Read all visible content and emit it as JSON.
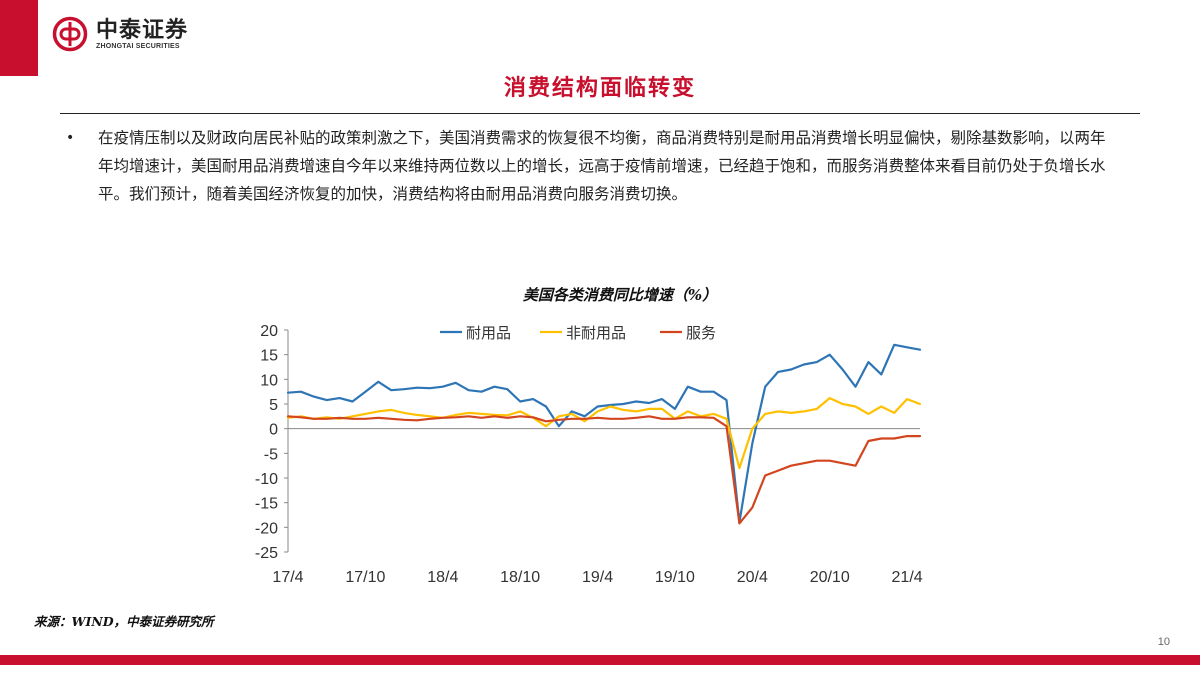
{
  "brand": {
    "name_cn": "中泰证券",
    "name_en": "ZHONGTAI SECURITIES",
    "color": "#c8102e"
  },
  "slide": {
    "title": "消费结构面临转变",
    "bullet": "在疫情压制以及财政向居民补贴的政策刺激之下，美国消费需求的恢复很不均衡，商品消费特别是耐用品消费增长明显偏快，剔除基数影响，以两年年均增速计，美国耐用品消费增速自今年以来维持两位数以上的增长，远高于疫情前增速，已经趋于饱和，而服务消费整体来看目前仍处于负增长水平。我们预计，随着美国经济恢复的加快，消费结构将由耐用品消费向服务消费切换。",
    "source": "来源：WIND，中泰证券研究所",
    "page_number": "10"
  },
  "chart_data": {
    "type": "line",
    "title": "美国各类消费同比增速（%）",
    "xlabel": "",
    "ylabel": "",
    "ylim": [
      -25,
      20
    ],
    "yticks": [
      20,
      15,
      10,
      5,
      0,
      -5,
      -10,
      -15,
      -20,
      -25
    ],
    "xtick_labels": [
      "17/4",
      "17/10",
      "18/4",
      "18/10",
      "19/4",
      "19/10",
      "20/4",
      "20/10",
      "21/4"
    ],
    "x": [
      "17/4",
      "17/5",
      "17/6",
      "17/7",
      "17/8",
      "17/9",
      "17/10",
      "17/11",
      "17/12",
      "18/1",
      "18/2",
      "18/3",
      "18/4",
      "18/5",
      "18/6",
      "18/7",
      "18/8",
      "18/9",
      "18/10",
      "18/11",
      "18/12",
      "19/1",
      "19/2",
      "19/3",
      "19/4",
      "19/5",
      "19/6",
      "19/7",
      "19/8",
      "19/9",
      "19/10",
      "19/11",
      "19/12",
      "20/1",
      "20/2",
      "20/3",
      "20/4",
      "20/5",
      "20/6",
      "20/7",
      "20/8",
      "20/9",
      "20/10",
      "20/11",
      "20/12",
      "21/1",
      "21/2",
      "21/3",
      "21/4",
      "21/5"
    ],
    "legend_position": "top",
    "grid": false,
    "series": [
      {
        "name": "耐用品",
        "color": "#2e75b6",
        "values": [
          7.3,
          7.5,
          6.5,
          5.8,
          6.2,
          5.5,
          7.5,
          9.5,
          7.8,
          8.0,
          8.3,
          8.2,
          8.5,
          9.3,
          7.8,
          7.5,
          8.5,
          8.0,
          5.5,
          6.0,
          4.5,
          0.5,
          3.5,
          2.5,
          4.5,
          4.8,
          5.0,
          5.5,
          5.2,
          6.0,
          4.0,
          8.5,
          7.5,
          7.5,
          5.8,
          -19.0,
          -3.0,
          8.5,
          11.5,
          12.0,
          13.0,
          13.5,
          15.0,
          12.0,
          8.5,
          13.5,
          11.0,
          17.0,
          16.5,
          16.0
        ]
      },
      {
        "name": "非耐用品",
        "color": "#ffc000",
        "values": [
          2.2,
          2.5,
          2.0,
          2.3,
          2.0,
          2.5,
          3.0,
          3.5,
          3.8,
          3.2,
          2.8,
          2.5,
          2.2,
          2.8,
          3.2,
          3.0,
          2.8,
          2.7,
          3.5,
          2.2,
          0.5,
          2.5,
          3.0,
          1.5,
          3.5,
          4.5,
          3.8,
          3.5,
          4.0,
          4.0,
          2.0,
          3.5,
          2.5,
          3.0,
          2.0,
          -8.0,
          0.0,
          3.0,
          3.5,
          3.2,
          3.5,
          4.0,
          6.2,
          5.0,
          4.5,
          3.0,
          4.5,
          3.2,
          6.0,
          5.0
        ]
      },
      {
        "name": "服务",
        "color": "#d2451e",
        "values": [
          2.5,
          2.3,
          2.0,
          2.0,
          2.2,
          2.0,
          2.0,
          2.2,
          2.0,
          1.8,
          1.7,
          2.0,
          2.2,
          2.3,
          2.5,
          2.2,
          2.5,
          2.2,
          2.5,
          2.3,
          1.5,
          1.8,
          2.0,
          2.0,
          2.2,
          2.0,
          2.0,
          2.2,
          2.5,
          2.0,
          2.0,
          2.3,
          2.3,
          2.2,
          0.5,
          -19.2,
          -16.0,
          -9.5,
          -8.5,
          -7.5,
          -7.0,
          -6.5,
          -6.5,
          -7.0,
          -7.5,
          -2.5,
          -2.0,
          -2.0,
          -1.5,
          -1.5
        ]
      }
    ]
  }
}
